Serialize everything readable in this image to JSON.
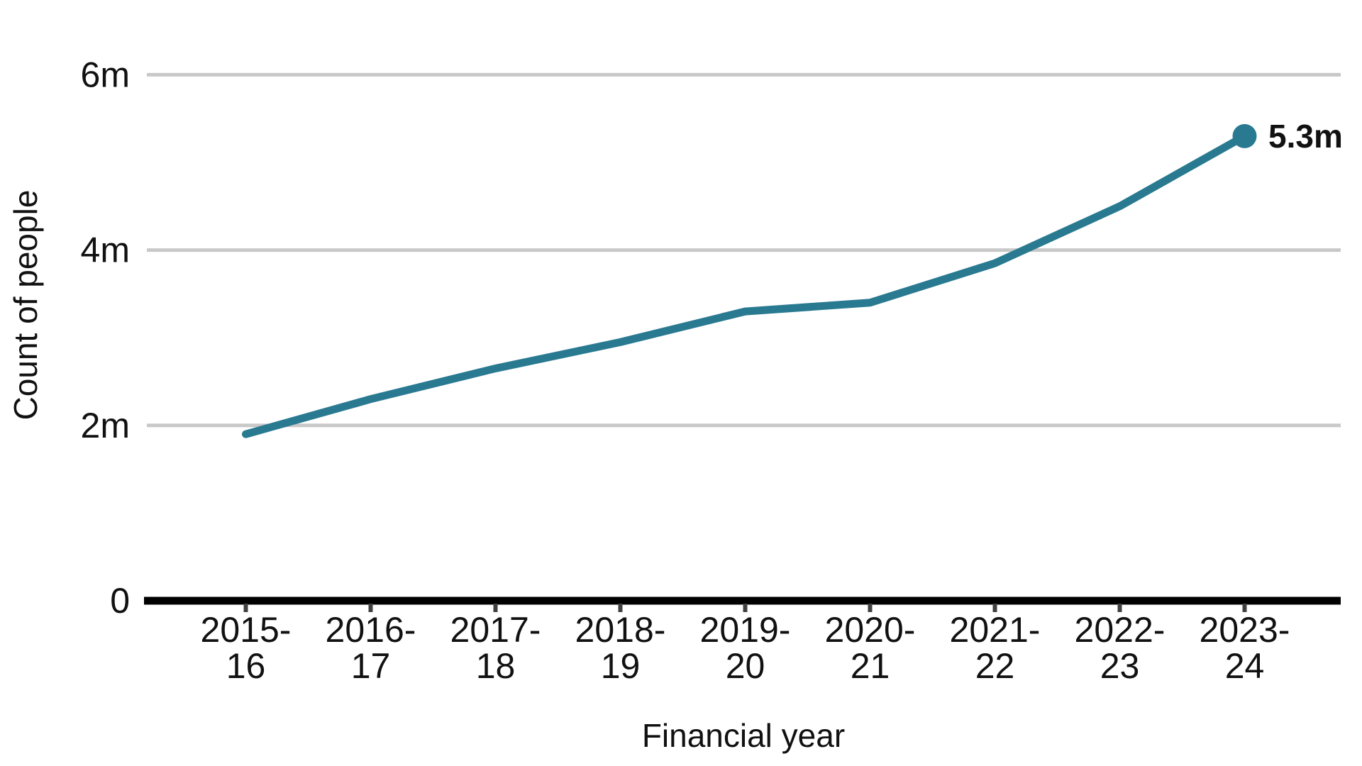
{
  "page": {
    "background_color": "#ffffff"
  },
  "chart_data": {
    "type": "line",
    "title": "",
    "xlabel": "Financial year",
    "ylabel": "Count of people",
    "categories": [
      "2015-16",
      "2016-17",
      "2017-18",
      "2018-19",
      "2019-20",
      "2020-21",
      "2021-22",
      "2022-23",
      "2023-24"
    ],
    "values": [
      1.9,
      2.3,
      2.65,
      2.95,
      3.3,
      3.4,
      3.85,
      4.5,
      5.3
    ],
    "unit": "millions of people",
    "ylim": [
      0,
      6
    ],
    "yticks": [
      {
        "value": 0,
        "label": "0"
      },
      {
        "value": 2,
        "label": "2m"
      },
      {
        "value": 4,
        "label": "4m"
      },
      {
        "value": 6,
        "label": "6m"
      }
    ],
    "end_annotation": "5.3m",
    "grid": true,
    "legend": false,
    "colors": {
      "line": "#297a91",
      "marker": "#297a91",
      "gridline": "#c8c8c8",
      "axis_line": "#000000",
      "tick_mark": "#404040",
      "text": "#111111"
    }
  }
}
